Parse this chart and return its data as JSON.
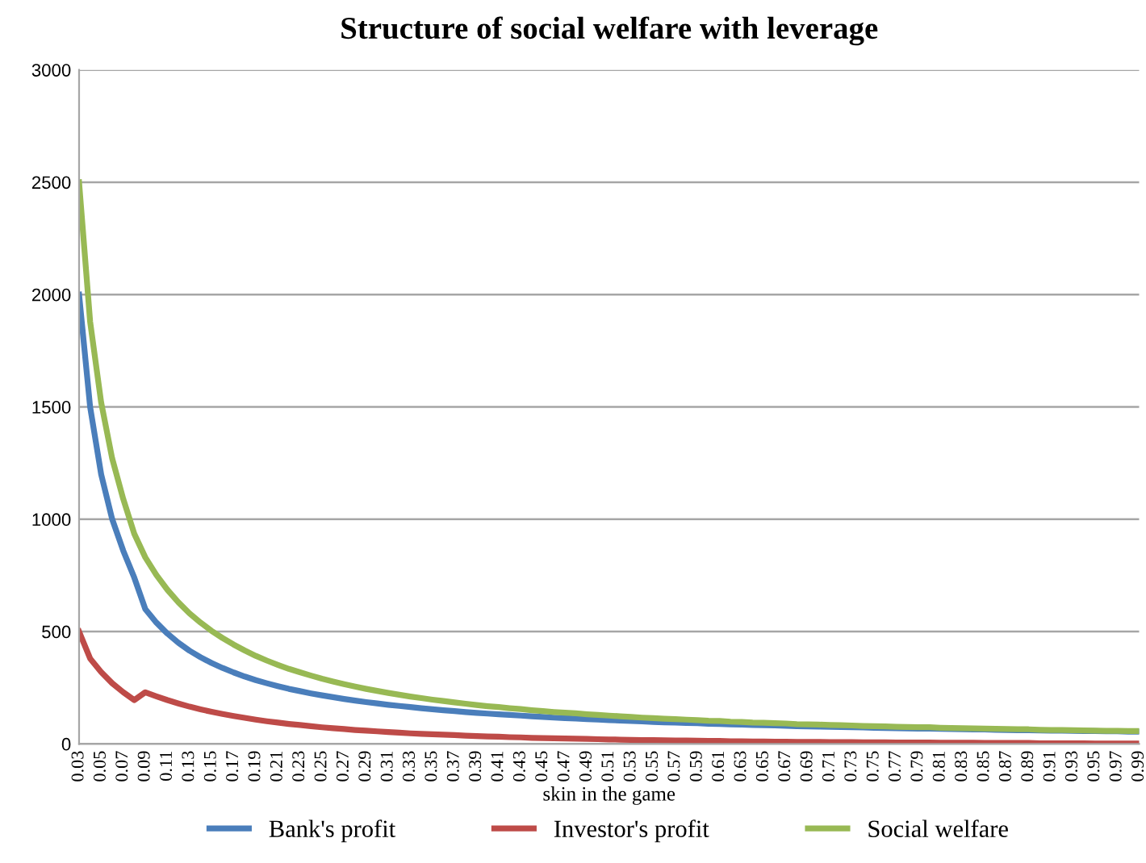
{
  "chart_data": {
    "type": "line",
    "title": "Structure of social welfare with leverage",
    "xlabel": "skin in the game",
    "categories": [
      "0.03",
      null,
      "0.05",
      null,
      "0.07",
      null,
      "0.09",
      null,
      "0.11",
      null,
      "0.13",
      null,
      "0.15",
      null,
      "0.17",
      null,
      "0.19",
      null,
      "0.21",
      null,
      "0.23",
      null,
      "0.25",
      null,
      "0.27",
      null,
      "0.29",
      null,
      "0.31",
      null,
      "0.33",
      null,
      "0.35",
      null,
      "0.37",
      null,
      "0.39",
      null,
      "0.41",
      null,
      "0.43",
      null,
      "0.45",
      null,
      "0.47",
      null,
      "0.49",
      null,
      "0.51",
      null,
      "0.53",
      null,
      "0.55",
      null,
      "0.57",
      null,
      "0.59",
      null,
      "0.61",
      null,
      "0.63",
      null,
      "0.65",
      null,
      "0.67",
      null,
      "0.69",
      null,
      "0.71",
      null,
      "0.73",
      null,
      "0.75",
      null,
      "0.77",
      null,
      "0.79",
      null,
      "0.81",
      null,
      "0.83",
      null,
      "0.85",
      null,
      "0.87",
      null,
      "0.89",
      null,
      "0.91",
      null,
      "0.93",
      null,
      "0.95",
      null,
      "0.97",
      null,
      "0.99"
    ],
    "series": [
      {
        "name": "Bank's profit",
        "color": "#4a7ebb",
        "values": [
          2000,
          1500,
          1200,
          1000,
          860,
          740,
          600,
          540,
          491,
          450,
          415,
          386,
          360,
          338,
          318,
          300,
          284,
          270,
          257,
          245,
          235,
          225,
          216,
          208,
          200,
          193,
          186,
          180,
          174,
          169,
          164,
          159,
          154,
          150,
          146,
          142,
          138,
          135,
          132,
          129,
          126,
          123,
          120,
          117,
          115,
          113,
          110,
          108,
          106,
          104,
          102,
          100,
          98,
          96,
          95,
          93,
          92,
          90,
          89,
          87,
          86,
          84,
          83,
          82,
          81,
          79,
          78,
          77,
          76,
          75,
          74,
          73,
          72,
          71,
          70,
          69,
          68,
          68,
          67,
          66,
          65,
          64,
          64,
          63,
          62,
          61,
          61,
          60,
          59,
          59,
          58,
          57,
          57,
          56,
          56,
          55,
          55
        ]
      },
      {
        "name": "Investor's profit",
        "color": "#be4b48",
        "values": [
          500,
          380,
          320,
          270,
          230,
          195,
          230,
          212,
          195,
          180,
          166,
          154,
          143,
          133,
          124,
          116,
          108,
          101,
          95,
          89,
          84,
          79,
          74,
          70,
          66,
          62,
          59,
          56,
          53,
          50,
          47,
          45,
          43,
          41,
          39,
          37,
          35,
          33,
          32,
          30,
          29,
          27,
          26,
          25,
          24,
          23,
          22,
          21,
          20,
          19,
          18,
          17,
          17,
          16,
          15,
          15,
          14,
          13,
          13,
          12,
          12,
          11,
          11,
          10,
          10,
          9,
          9,
          9,
          8,
          8,
          8,
          7,
          7,
          7,
          6,
          6,
          6,
          6,
          5,
          5,
          5,
          5,
          4,
          4,
          4,
          4,
          4,
          3,
          3,
          3,
          3,
          3,
          2,
          2,
          2,
          2,
          2
        ]
      },
      {
        "name": "Social welfare",
        "color": "#98b954",
        "values": [
          2500,
          1880,
          1520,
          1270,
          1090,
          935,
          830,
          752,
          686,
          630,
          581,
          540,
          503,
          471,
          442,
          416,
          392,
          371,
          352,
          334,
          319,
          304,
          290,
          278,
          266,
          255,
          245,
          236,
          227,
          219,
          211,
          204,
          197,
          191,
          185,
          179,
          173,
          168,
          164,
          159,
          155,
          150,
          146,
          142,
          139,
          136,
          132,
          129,
          126,
          123,
          120,
          117,
          115,
          112,
          110,
          108,
          106,
          103,
          102,
          99,
          98,
          95,
          94,
          92,
          91,
          88,
          87,
          86,
          84,
          83,
          82,
          80,
          79,
          78,
          76,
          75,
          74,
          74,
          72,
          71,
          70,
          69,
          68,
          67,
          66,
          65,
          65,
          63,
          62,
          62,
          61,
          60,
          59,
          58,
          58,
          57,
          57
        ]
      }
    ],
    "ylim": [
      0,
      3000
    ],
    "yticks": [
      0,
      500,
      1000,
      1500,
      2000,
      2500,
      3000
    ],
    "grid": "y",
    "legend": "bottom",
    "marker": "none",
    "line_style": "solid"
  }
}
